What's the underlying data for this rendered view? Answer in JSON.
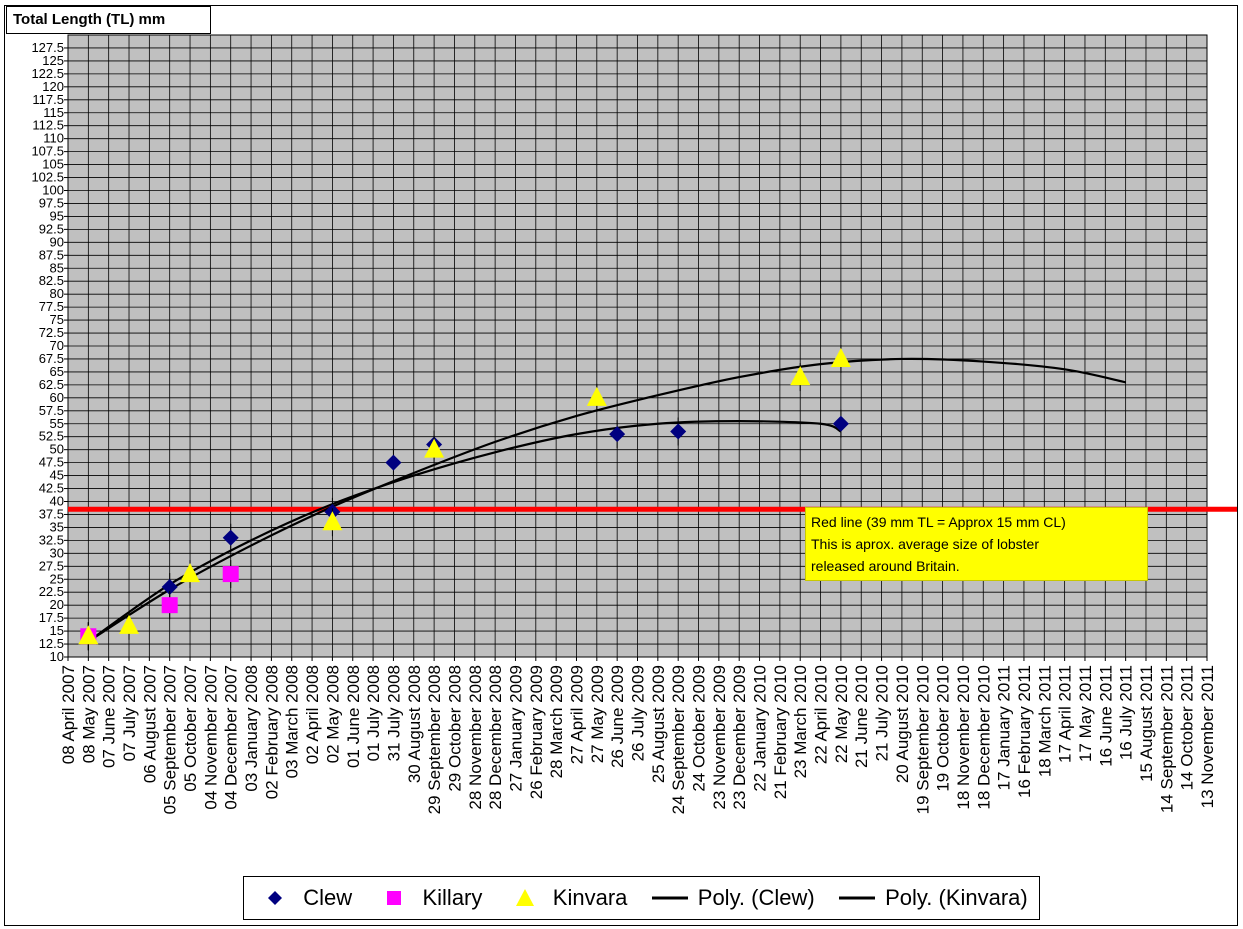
{
  "chart_data": {
    "type": "scatter",
    "title": "Total Length (TL) mm",
    "xlabel": "",
    "ylabel": "",
    "ylim": [
      10,
      130
    ],
    "ytick_step": 2.5,
    "grid": true,
    "legend_position": "bottom",
    "x_type": "date",
    "xlim": [
      "2007-04-08",
      "2011-11-13"
    ],
    "x_tick_labels": [
      "08 April 2007",
      "08 May 2007",
      "07 June 2007",
      "07 July 2007",
      "06 August 2007",
      "05 September 2007",
      "05 October 2007",
      "04 November 2007",
      "04 December 2007",
      "03 January 2008",
      "02 February 2008",
      "03 March 2008",
      "02 April 2008",
      "02 May 2008",
      "01 June 2008",
      "01 July 2008",
      "31 July 2008",
      "30 August 2008",
      "29 September 2008",
      "29 October 2008",
      "28 November 2008",
      "28 December 2008",
      "27 January 2009",
      "26 February 2009",
      "28 March 2009",
      "27 April 2009",
      "27 May 2009",
      "26 June 2009",
      "26 July 2009",
      "25 August 2009",
      "24 September 2009",
      "24 October 2009",
      "23 November 2009",
      "23 December 2009",
      "22 January 2010",
      "21 February 2010",
      "23 March 2010",
      "22 April 2010",
      "22 May 2010",
      "21 June 2010",
      "21 July 2010",
      "20 August 2010",
      "19 September 2010",
      "19 October 2010",
      "18 November 2010",
      "18 December 2010",
      "17 January 2011",
      "16 February 2011",
      "18 March 2011",
      "17 April 2011",
      "17 May 2011",
      "16 June 2011",
      "16 July 2011",
      "15 August 2011",
      "14 September 2011",
      "14 October 2011",
      "13 November 2011"
    ],
    "series": [
      {
        "name": "Clew",
        "marker": "diamond",
        "color": "#000080",
        "x": [
          "2007-05-08",
          "2007-09-05",
          "2007-12-04",
          "2008-05-02",
          "2008-07-31",
          "2008-09-29",
          "2009-06-26",
          "2009-09-24",
          "2010-05-22"
        ],
        "y": [
          14,
          23.5,
          33,
          38,
          47.5,
          51,
          53,
          53.5,
          55
        ]
      },
      {
        "name": "Killary",
        "marker": "square",
        "color": "#ff00ff",
        "x": [
          "2007-05-08",
          "2007-09-05",
          "2007-12-04"
        ],
        "y": [
          14,
          20,
          26
        ]
      },
      {
        "name": "Kinvara",
        "marker": "triangle",
        "color": "#ffff00",
        "x": [
          "2007-05-08",
          "2007-07-07",
          "2007-10-05",
          "2008-05-02",
          "2008-09-29",
          "2009-05-27",
          "2010-03-23",
          "2010-05-22"
        ],
        "y": [
          14,
          16,
          26,
          36,
          50,
          60,
          64,
          67.5
        ]
      },
      {
        "name": "Poly. (Clew)",
        "type": "line",
        "color": "#000000",
        "x": [
          "2007-05-08",
          "2007-09-05",
          "2008-01-03",
          "2008-05-02",
          "2008-08-30",
          "2008-12-28",
          "2009-04-27",
          "2009-08-25",
          "2009-12-23",
          "2010-04-22",
          "2010-05-22"
        ],
        "y": [
          13,
          24,
          32.5,
          39.5,
          45,
          49.5,
          53,
          55,
          55.5,
          55,
          53.5
        ]
      },
      {
        "name": "Poly. (Kinvara)",
        "type": "line",
        "color": "#000000",
        "x": [
          "2007-05-08",
          "2007-09-05",
          "2008-01-03",
          "2008-05-02",
          "2008-08-30",
          "2008-12-28",
          "2009-04-27",
          "2009-08-25",
          "2009-12-23",
          "2010-04-22",
          "2010-08-20",
          "2010-12-18",
          "2011-04-17",
          "2011-07-16"
        ],
        "y": [
          13,
          23,
          31.5,
          39,
          45.5,
          51.5,
          56.5,
          60.5,
          64,
          66.5,
          67.5,
          67,
          65.5,
          63
        ]
      }
    ],
    "reference_line": {
      "y": 38.5,
      "color": "#ff0000"
    },
    "annotation": {
      "lines": [
        "Red line (39 mm TL = Approx  15 mm CL)",
        "This is aprox. average size of lobster",
        "released around Britain."
      ],
      "background": "#ffff00"
    }
  },
  "legend": {
    "items": [
      {
        "label": "Clew",
        "symbol": "diamond",
        "color": "#000080"
      },
      {
        "label": "Killary",
        "symbol": "square",
        "color": "#ff00ff"
      },
      {
        "label": "Kinvara",
        "symbol": "triangle",
        "color": "#ffff00"
      },
      {
        "label": "Poly. (Clew)",
        "symbol": "line",
        "color": "#000000"
      },
      {
        "label": "Poly. (Kinvara)",
        "symbol": "line",
        "color": "#000000"
      }
    ]
  },
  "colors": {
    "plot_background": "#c0c0c0",
    "gridline": "#000000"
  }
}
